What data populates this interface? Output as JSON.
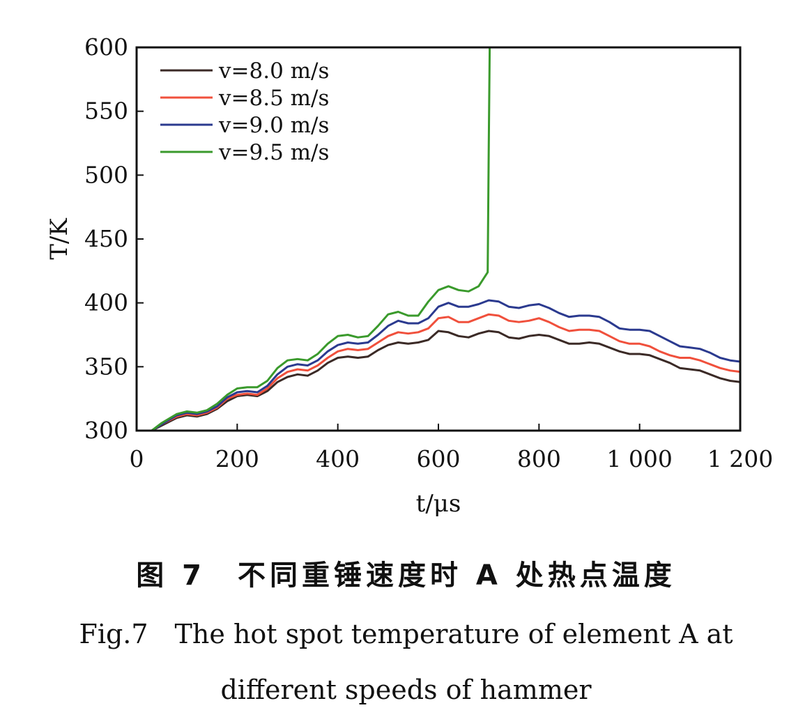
{
  "chart_data": {
    "type": "line",
    "xlabel": "t/μs",
    "ylabel": "T/K",
    "xlim": [
      0,
      1200
    ],
    "ylim": [
      300,
      600
    ],
    "xticks": [
      0,
      200,
      400,
      600,
      800,
      1000,
      1200
    ],
    "xtick_labels": [
      "0",
      "200",
      "400",
      "600",
      "800",
      "1 000",
      "1 200"
    ],
    "yticks": [
      300,
      350,
      400,
      450,
      500,
      550,
      600
    ],
    "ytick_labels": [
      "300",
      "350",
      "400",
      "450",
      "500",
      "550",
      "600"
    ],
    "grid": false,
    "legend_position": "top-left",
    "series": [
      {
        "name": "v=8.0 m/s",
        "color": "#3b2a26",
        "x": [
          30,
          50,
          80,
          100,
          120,
          140,
          160,
          180,
          200,
          220,
          240,
          260,
          280,
          300,
          320,
          340,
          360,
          380,
          400,
          420,
          440,
          460,
          480,
          500,
          520,
          540,
          560,
          580,
          600,
          620,
          640,
          660,
          680,
          700,
          720,
          740,
          760,
          780,
          800,
          820,
          840,
          860,
          880,
          900,
          920,
          940,
          960,
          980,
          1000,
          1020,
          1040,
          1060,
          1080,
          1100,
          1120,
          1140,
          1160,
          1180,
          1200
        ],
        "y": [
          300,
          304,
          310,
          312,
          311,
          313,
          317,
          323,
          327,
          328,
          327,
          331,
          338,
          342,
          344,
          343,
          347,
          353,
          357,
          358,
          357,
          358,
          363,
          367,
          369,
          368,
          369,
          371,
          378,
          377,
          374,
          373,
          376,
          378,
          377,
          373,
          372,
          374,
          375,
          374,
          371,
          368,
          368,
          369,
          368,
          365,
          362,
          360,
          360,
          359,
          356,
          353,
          349,
          348,
          347,
          344,
          341,
          339,
          338
        ]
      },
      {
        "name": "v=8.5 m/s",
        "color": "#f0503c",
        "x": [
          30,
          50,
          80,
          100,
          120,
          140,
          160,
          180,
          200,
          220,
          240,
          260,
          280,
          300,
          320,
          340,
          360,
          380,
          400,
          420,
          440,
          460,
          480,
          500,
          520,
          540,
          560,
          580,
          600,
          620,
          640,
          660,
          680,
          700,
          720,
          740,
          760,
          780,
          800,
          820,
          840,
          860,
          880,
          900,
          920,
          940,
          960,
          980,
          1000,
          1020,
          1040,
          1060,
          1080,
          1100,
          1120,
          1140,
          1160,
          1180,
          1200
        ],
        "y": [
          300,
          305,
          311,
          313,
          312,
          314,
          318,
          325,
          328,
          329,
          328,
          333,
          341,
          346,
          348,
          347,
          351,
          357,
          362,
          364,
          363,
          364,
          369,
          374,
          377,
          376,
          377,
          380,
          388,
          389,
          385,
          385,
          388,
          391,
          390,
          386,
          385,
          386,
          388,
          385,
          381,
          378,
          379,
          379,
          378,
          374,
          370,
          368,
          368,
          366,
          362,
          359,
          357,
          357,
          355,
          352,
          349,
          347,
          346
        ]
      },
      {
        "name": "v=9.0 m/s",
        "color": "#2b3a8f",
        "x": [
          30,
          50,
          80,
          100,
          120,
          140,
          160,
          180,
          200,
          220,
          240,
          260,
          280,
          300,
          320,
          340,
          360,
          380,
          400,
          420,
          440,
          460,
          480,
          500,
          520,
          540,
          560,
          580,
          600,
          620,
          640,
          660,
          680,
          700,
          720,
          740,
          760,
          780,
          800,
          820,
          840,
          860,
          880,
          900,
          920,
          940,
          960,
          980,
          1000,
          1020,
          1040,
          1060,
          1080,
          1100,
          1120,
          1140,
          1160,
          1180,
          1200
        ],
        "y": [
          300,
          305,
          312,
          314,
          313,
          315,
          319,
          326,
          330,
          331,
          330,
          335,
          344,
          350,
          352,
          351,
          355,
          362,
          367,
          369,
          368,
          369,
          375,
          382,
          386,
          384,
          384,
          388,
          397,
          400,
          397,
          397,
          399,
          402,
          401,
          397,
          396,
          398,
          399,
          396,
          392,
          389,
          390,
          390,
          389,
          385,
          380,
          379,
          379,
          378,
          374,
          370,
          366,
          365,
          364,
          361,
          357,
          355,
          354
        ]
      },
      {
        "name": "v=9.5 m/s",
        "color": "#3a9a2c",
        "x": [
          30,
          50,
          80,
          100,
          120,
          140,
          160,
          180,
          200,
          220,
          240,
          260,
          280,
          300,
          320,
          340,
          360,
          380,
          400,
          420,
          440,
          460,
          480,
          500,
          520,
          540,
          560,
          580,
          600,
          620,
          640,
          660,
          680,
          698,
          700,
          702
        ],
        "y": [
          300,
          306,
          313,
          315,
          314,
          316,
          321,
          328,
          333,
          334,
          334,
          339,
          349,
          355,
          356,
          355,
          360,
          368,
          374,
          375,
          373,
          374,
          382,
          391,
          393,
          390,
          390,
          401,
          410,
          413,
          410,
          409,
          413,
          424,
          520,
          600
        ]
      }
    ]
  },
  "caption": {
    "cn": "图 7　不同重锤速度时 A 处热点温度",
    "en_line1": "Fig.7　The hot spot temperature of element A at",
    "en_line2": "different speeds of hammer"
  }
}
